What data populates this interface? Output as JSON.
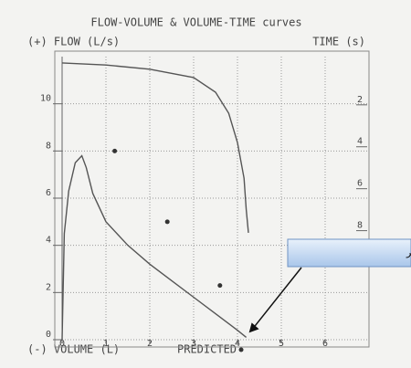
{
  "chart_data": {
    "type": "line",
    "title": "FLOW-VOLUME & VOLUME-TIME curves",
    "ylabel": "(+) FLOW (L/s)",
    "y2label": "TIME (s)",
    "xlabel": "(-) VOLUME (L)",
    "xlim": [
      0,
      7
    ],
    "xticks": [
      0,
      1,
      2,
      3,
      4,
      5,
      6
    ],
    "ylim": [
      0,
      12
    ],
    "yticks": [
      0,
      2,
      4,
      6,
      8,
      10
    ],
    "y2lim": [
      13.2,
      -0.3
    ],
    "y2ticks": [
      2,
      4,
      6,
      8
    ],
    "grid": true,
    "series": [
      {
        "color": "#555555",
        "x": [
          0,
          0.05,
          0.15,
          0.3,
          0.45,
          0.55,
          0.7,
          1,
          1.5,
          2,
          2.5,
          3,
          3.5,
          4,
          4.2
        ],
        "values": [
          0,
          4.5,
          6.3,
          7.5,
          7.8,
          7.3,
          6.2,
          5,
          4,
          3.2,
          2.5,
          1.8,
          1.1,
          0.4,
          0.1
        ]
      },
      {
        "color": "#555555",
        "axis": "y2",
        "x": [
          0,
          1,
          2,
          3,
          3.5,
          3.8,
          4.0,
          4.15,
          4.2,
          4.25
        ],
        "values": [
          0,
          0.1,
          0.3,
          0.7,
          1.4,
          2.4,
          3.8,
          5.5,
          7,
          8.1
        ]
      },
      {
        "name": "PREDICTED",
        "color": "#333333",
        "marker": "dot",
        "x": [
          1.2,
          2.4,
          3.6
        ],
        "values": [
          8,
          5,
          2.3
        ]
      }
    ],
    "annotation": {
      "text": "سیدن به نقطه صفر",
      "x": 4.2,
      "y": 0.1
    }
  }
}
